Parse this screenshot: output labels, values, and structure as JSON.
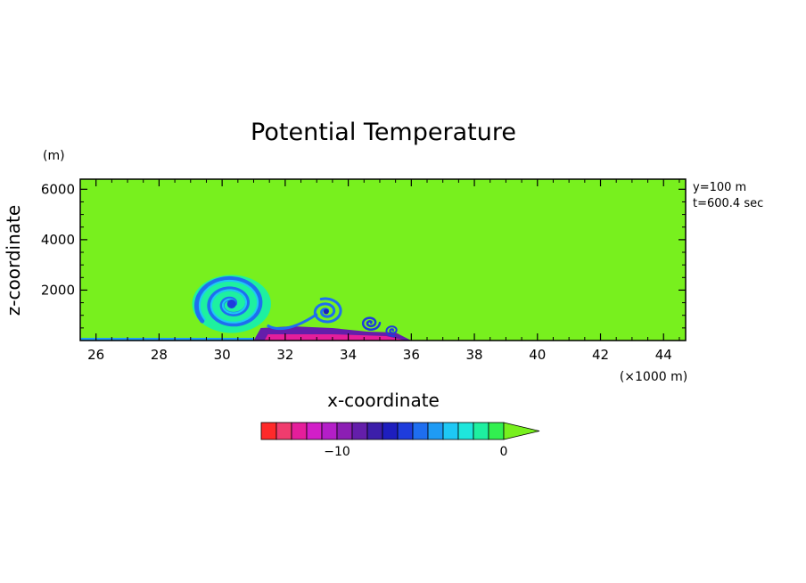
{
  "chart_data": {
    "type": "heatmap",
    "title": "Potential Temperature",
    "xlabel": "x-coordinate",
    "ylabel": "z-coordinate",
    "x_unit": "(×1000 m)",
    "y_unit": "(m)",
    "xlim": [
      25.5,
      44.7
    ],
    "ylim": [
      0,
      6400
    ],
    "x_ticks": [
      "26",
      "28",
      "30",
      "32",
      "34",
      "36",
      "38",
      "40",
      "42",
      "44"
    ],
    "y_ticks": [
      "2000",
      "4000",
      "6000"
    ],
    "annotations": [
      "y=100 m",
      "t=600.4 sec"
    ],
    "background_value": 0,
    "colorbar": {
      "levels": 16,
      "min": -15,
      "max": 0,
      "labels": [
        {
          "text": "−10",
          "value": -10
        },
        {
          "text": "0",
          "value": 0
        }
      ],
      "extend": "max",
      "colors": [
        "#ff2a2a",
        "#f03c6e",
        "#e51e9b",
        "#d21ec8",
        "#b41ec8",
        "#8c1eb4",
        "#641eaa",
        "#3c1eaa",
        "#1e1ebe",
        "#1e3cdc",
        "#1e6ef0",
        "#1e9bf5",
        "#1ec8f5",
        "#1ee6dc",
        "#1ef0a0",
        "#32f050",
        "#78f01e"
      ]
    },
    "features": [
      {
        "name": "main-vortex",
        "x": 30.3,
        "z": 1450
      },
      {
        "name": "second-vortex",
        "x": 33.3,
        "z": 1150
      },
      {
        "name": "third-vortex",
        "x": 34.7,
        "z": 700
      },
      {
        "name": "fourth-vortex",
        "x": 35.4,
        "z": 400
      },
      {
        "name": "cold-front-head",
        "x": 36.0,
        "z": 0
      }
    ]
  }
}
